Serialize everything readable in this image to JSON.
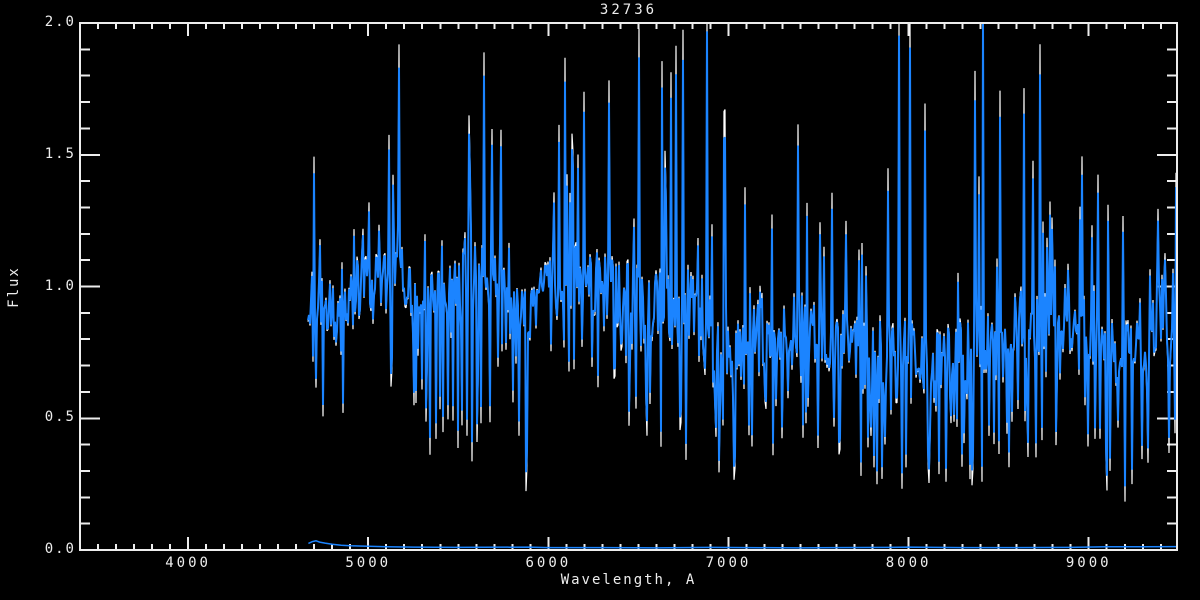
{
  "window": {
    "background": "#000000",
    "foreground": "#ededed"
  },
  "chart_data": {
    "type": "line",
    "title": "32736",
    "xlabel": "Wavelength, A",
    "ylabel": "Flux",
    "xlim": [
      3400,
      9490
    ],
    "ylim": [
      0.0,
      2.0
    ],
    "grid": false,
    "legend": null,
    "axis_color": "#ededed",
    "background_color": "#000000",
    "x_major_ticks": [
      4000,
      5000,
      6000,
      7000,
      8000,
      9000
    ],
    "x_tick_labels": [
      "4000",
      "5000",
      "6000",
      "7000",
      "8000",
      "9000"
    ],
    "x_minor_step": 100,
    "y_major_ticks": [
      0.0,
      0.5,
      1.0,
      1.5,
      2.0
    ],
    "y_tick_labels": [
      "0.0",
      "0.5",
      "1.0",
      "1.5",
      "2.0"
    ],
    "y_minor_step": 0.1,
    "series": [
      {
        "name": "spectrum-white-underlay",
        "type": "noisy-spectrum-underlay",
        "color": "#ffffff",
        "note": "same spectrum drawn thin in white beneath the blue; visible only at spike tips"
      },
      {
        "name": "spectrum-blue",
        "type": "noisy-spectrum",
        "color": "#1b84ff",
        "wl_start": 4668,
        "wl_end": 9487,
        "flux_clip": [
          0.0,
          2.0
        ],
        "envelope": {
          "wl": [
            4668,
            4700,
            4730,
            4760,
            4800,
            4860,
            4900,
            5000,
            5100,
            5170,
            5230,
            5330,
            5450,
            5560,
            5650,
            5700,
            5800,
            5890,
            5950,
            6100,
            6250,
            6400,
            6550,
            6700,
            6850,
            6900,
            6960,
            7050,
            7150,
            7250,
            7400,
            7500,
            7600,
            7700,
            7800,
            7890,
            7950,
            8050,
            8150,
            8250,
            8350,
            8450,
            8600,
            8750,
            8900,
            9000,
            9100,
            9180,
            9280,
            9380,
            9487
          ],
          "lo": [
            0.82,
            0.75,
            0.8,
            0.7,
            0.72,
            0.65,
            0.8,
            0.8,
            0.85,
            0.85,
            0.8,
            0.75,
            0.8,
            0.75,
            0.8,
            0.8,
            0.82,
            0.7,
            0.8,
            0.8,
            0.78,
            0.75,
            0.7,
            0.65,
            0.55,
            0.45,
            0.4,
            0.5,
            0.55,
            0.55,
            0.6,
            0.6,
            0.55,
            0.55,
            0.5,
            0.4,
            0.45,
            0.5,
            0.5,
            0.5,
            0.55,
            0.55,
            0.6,
            0.6,
            0.65,
            0.6,
            0.5,
            0.45,
            0.55,
            0.6,
            0.65
          ],
          "hi": [
            1.02,
            1.05,
            1.15,
            1.05,
            1.1,
            1.05,
            1.15,
            1.2,
            1.25,
            1.35,
            1.2,
            1.15,
            1.2,
            1.25,
            1.35,
            1.25,
            1.15,
            1.05,
            1.15,
            1.25,
            1.28,
            1.2,
            1.2,
            1.15,
            1.3,
            1.2,
            0.95,
            1.0,
            1.05,
            1.0,
            1.15,
            1.05,
            1.0,
            1.0,
            0.95,
            0.9,
            1.1,
            1.0,
            0.95,
            0.95,
            1.0,
            1.05,
            1.1,
            1.1,
            1.1,
            1.05,
            1.0,
            0.95,
            1.05,
            1.15,
            1.2
          ],
          "deep": [
            0.67,
            0.45,
            0.55,
            0.42,
            0.4,
            0.33,
            0.5,
            0.42,
            0.55,
            0.6,
            0.45,
            0.35,
            0.5,
            0.35,
            0.4,
            0.45,
            0.5,
            0.2,
            0.55,
            0.5,
            0.45,
            0.45,
            0.4,
            0.35,
            0.28,
            0.25,
            0.25,
            0.3,
            0.3,
            0.32,
            0.35,
            0.35,
            0.3,
            0.3,
            0.25,
            0.15,
            0.25,
            0.3,
            0.25,
            0.25,
            0.3,
            0.3,
            0.35,
            0.35,
            0.4,
            0.35,
            0.2,
            0.15,
            0.3,
            0.35,
            0.4
          ],
          "peak": [
            1.25,
            1.65,
            1.65,
            1.3,
            1.35,
            1.3,
            1.4,
            1.5,
            1.6,
            2.1,
            1.6,
            1.45,
            1.55,
            1.9,
            2.2,
            1.8,
            1.35,
            1.3,
            1.4,
            1.9,
            2.1,
            1.9,
            2.1,
            2.1,
            2.2,
            2.2,
            1.6,
            1.5,
            1.7,
            1.6,
            2.1,
            1.7,
            1.5,
            1.6,
            1.5,
            1.6,
            2.2,
            1.8,
            1.6,
            1.7,
            1.9,
            2.1,
            2.0,
            1.8,
            1.6,
            1.7,
            1.6,
            1.5,
            1.8,
            2.0,
            2.1
          ]
        },
        "noise": {
          "seed": 32736,
          "core_fuzz": 0.55,
          "down_prob": 0.3,
          "up_prob": 0.18,
          "white_amplify": 1.12
        }
      },
      {
        "name": "error-spectrum",
        "type": "line",
        "color": "#1b84ff",
        "wl": [
          4668,
          4690,
          4710,
          4730,
          4760,
          4800,
          4850,
          4900,
          5000,
          5100,
          5250,
          5500,
          5890,
          6000,
          6300,
          6600,
          6900,
          7100,
          7400,
          7600,
          7900,
          8000,
          8300,
          8600,
          8900,
          9100,
          9300,
          9487
        ],
        "flux": [
          0.025,
          0.032,
          0.035,
          0.03,
          0.026,
          0.022,
          0.018,
          0.016,
          0.014,
          0.012,
          0.011,
          0.01,
          0.011,
          0.009,
          0.009,
          0.008,
          0.01,
          0.009,
          0.008,
          0.009,
          0.01,
          0.011,
          0.009,
          0.009,
          0.01,
          0.012,
          0.012,
          0.013
        ]
      }
    ]
  }
}
